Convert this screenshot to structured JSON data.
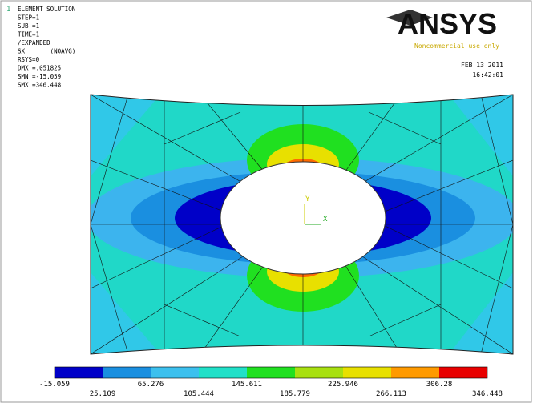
{
  "corner_label": "1",
  "info": [
    "ELEMENT SOLUTION",
    "STEP=1",
    "SUB =1",
    "TIME=1",
    "/EXPANDED",
    "SX       (NOAVG)",
    "RSYS=0",
    "DMX =.051825",
    "SMN =-15.059",
    "SMX =346.448"
  ],
  "logo": {
    "name": "ANSYS",
    "note": "Noncommercial use only"
  },
  "date": "FEB 13 2011",
  "time": "16:42:01",
  "triad": {
    "y": "Y",
    "x": "X"
  },
  "legend": {
    "colors": [
      "#0000c8",
      "#1a8fe0",
      "#3cc0ee",
      "#20e0c8",
      "#20e020",
      "#a8e010",
      "#e8e000",
      "#ff9a00",
      "#e80000"
    ],
    "values": [
      -15.059,
      25.109,
      65.276,
      105.444,
      145.611,
      185.779,
      225.946,
      266.113,
      306.28,
      346.448
    ]
  }
}
